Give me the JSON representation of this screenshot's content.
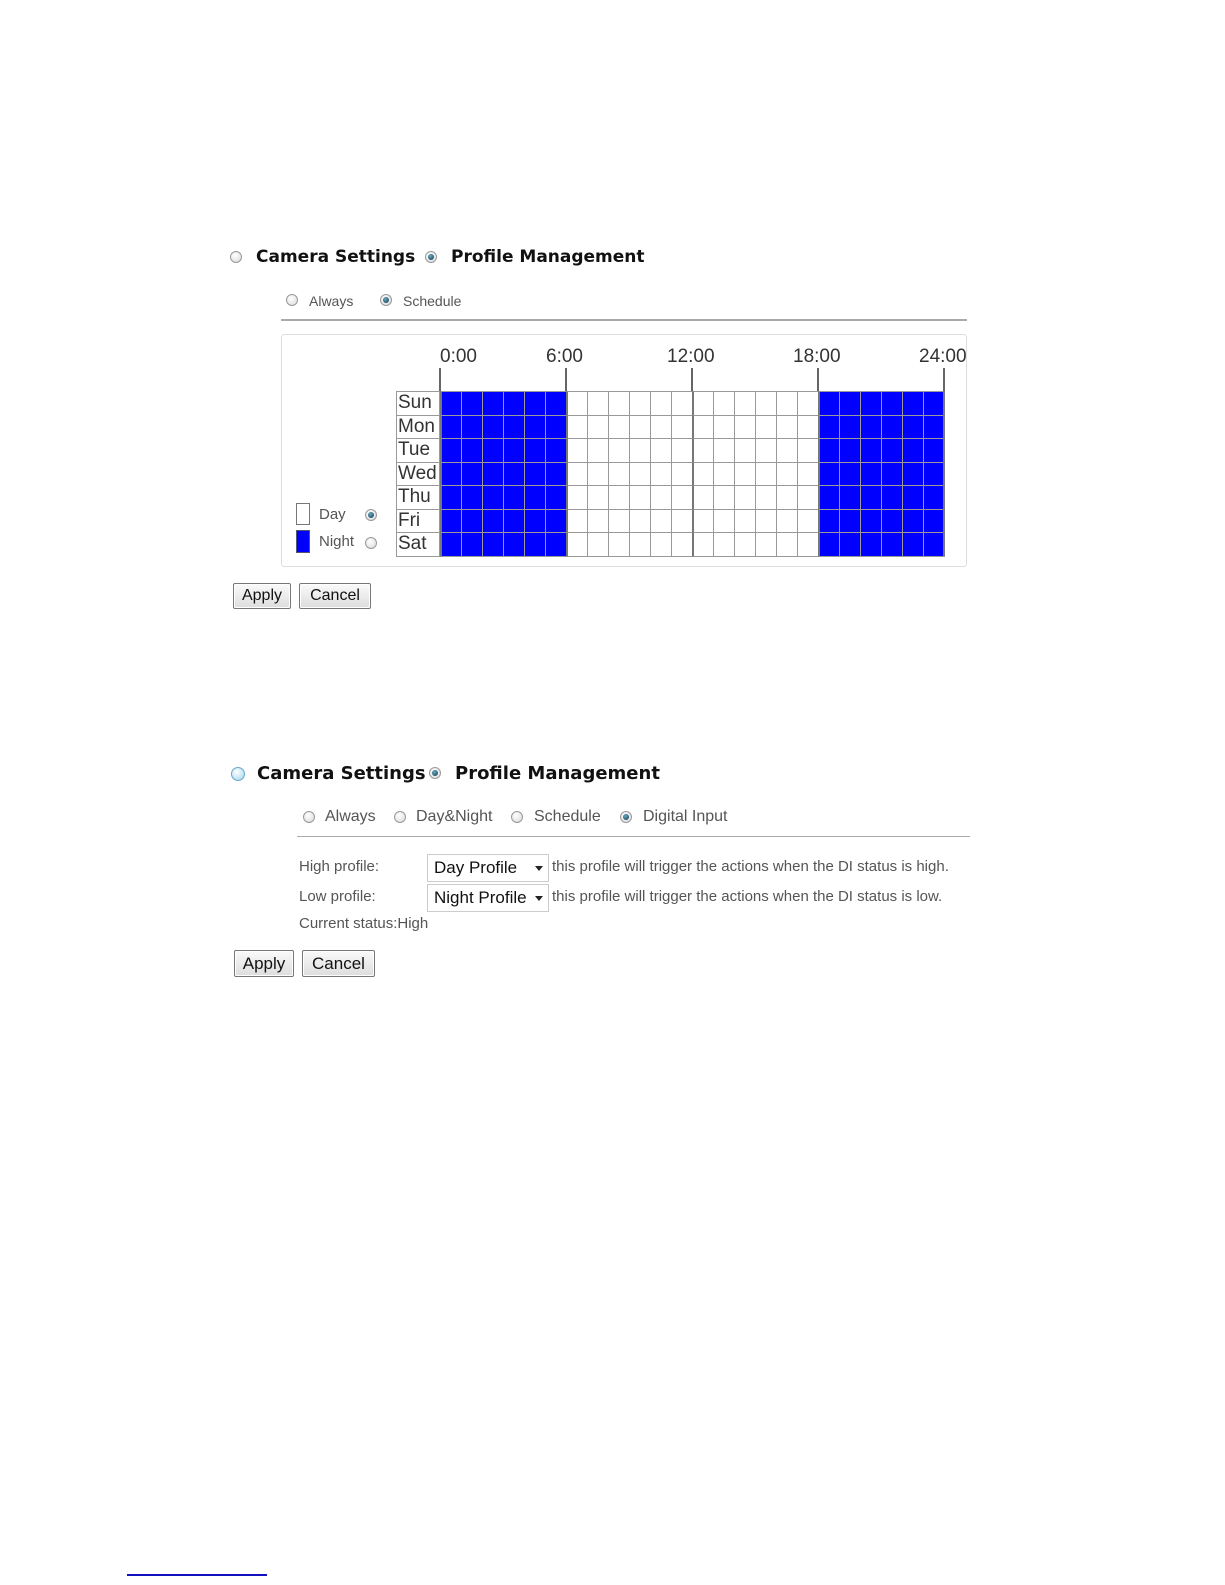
{
  "section1": {
    "mode_options": [
      {
        "label": "Camera Settings",
        "selected": false
      },
      {
        "label": "Profile Management",
        "selected": true
      }
    ],
    "sub_options": [
      {
        "label": "Always",
        "selected": false
      },
      {
        "label": "Schedule",
        "selected": true
      }
    ],
    "time_labels": [
      "0:00",
      "6:00",
      "12:00",
      "18:00",
      "24:00"
    ],
    "days": [
      "Sun",
      "Mon",
      "Tue",
      "Wed",
      "Thu",
      "Fri",
      "Sat"
    ],
    "schedule": [
      "NNNNNNDDDDDDDDDDDDNNNNNN",
      "NNNNNNDDDDDDDDDDDDNNNNNN",
      "NNNNNNDDDDDDDDDDDDNNNNNN",
      "NNNNNNDDDDDDDDDDDDNNNNNN",
      "NNNNNNDDDDDDDDDDDDNNNNNN",
      "NNNNNNDDDDDDDDDDDDNNNNNN",
      "NNNNNNDDDDDDDDDDDDNNNNNN"
    ],
    "legend": [
      {
        "label": "Day",
        "color": "#ffffff",
        "selected": true
      },
      {
        "label": "Night",
        "color": "#0000ff",
        "selected": false
      }
    ],
    "apply_label": "Apply",
    "cancel_label": "Cancel"
  },
  "section2": {
    "mode_options": [
      {
        "label": "Camera Settings",
        "selected": false
      },
      {
        "label": "Profile Management",
        "selected": true
      }
    ],
    "sub_options": [
      {
        "label": "Always",
        "selected": false
      },
      {
        "label": "Day&Night",
        "selected": false
      },
      {
        "label": "Schedule",
        "selected": false
      },
      {
        "label": "Digital Input",
        "selected": true
      }
    ],
    "high_label": "High profile:",
    "high_value": "Day Profile",
    "high_desc": "this profile will trigger the actions when the DI status is high.",
    "low_label": "Low profile:",
    "low_value": "Night Profile",
    "low_desc": "this profile will trigger the actions when the DI status is low.",
    "status": "Current status:High",
    "apply_label": "Apply",
    "cancel_label": "Cancel"
  },
  "colors": {
    "night": "#0000ff",
    "day": "#ffffff"
  }
}
